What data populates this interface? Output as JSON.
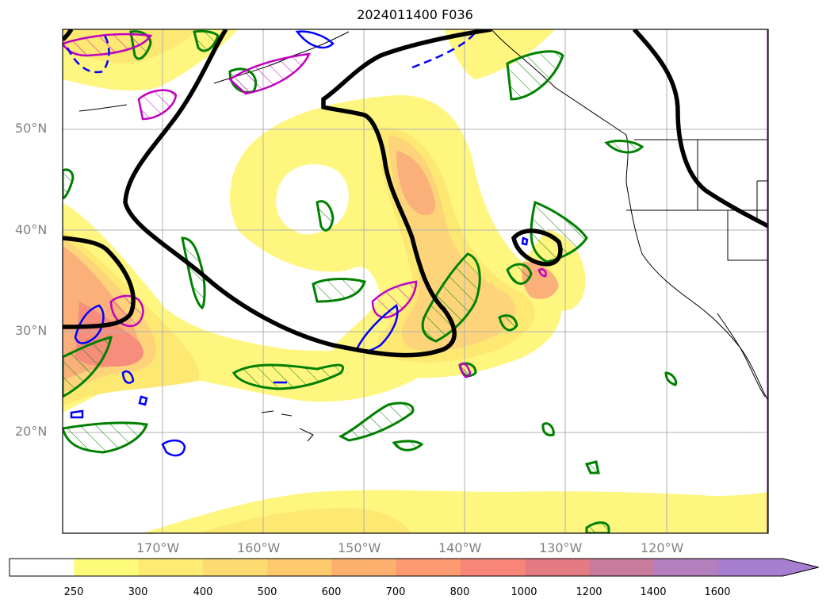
{
  "title": "2024011400 F036",
  "lat_labels": [
    "20°N",
    "30°N",
    "40°N",
    "50°N"
  ],
  "lon_labels": [
    "170°W",
    "160°W",
    "150°W",
    "140°W",
    "130°W",
    "120°W"
  ],
  "colorbar": {
    "labels": [
      "250",
      "300",
      "400",
      "500",
      "600",
      "700",
      "800",
      "1000",
      "1200",
      "1400",
      "1600"
    ],
    "colors": [
      "#ffffff",
      "#fdfb79",
      "#fdeb73",
      "#fddb70",
      "#fdc96d",
      "#fdb06e",
      "#fd9a72",
      "#f98478",
      "#e47a82",
      "#c97b9c",
      "#b37fbd",
      "#a67fd0"
    ]
  },
  "layers": {
    "fill_colors": [
      "#fff680",
      "#fde872",
      "#fdd47a",
      "#fbb07a",
      "#f78e7b"
    ],
    "contour_black": "#000000",
    "contour_green": "#008000",
    "contour_magenta": "#c000c0",
    "contour_blue": "#0000ff"
  }
}
